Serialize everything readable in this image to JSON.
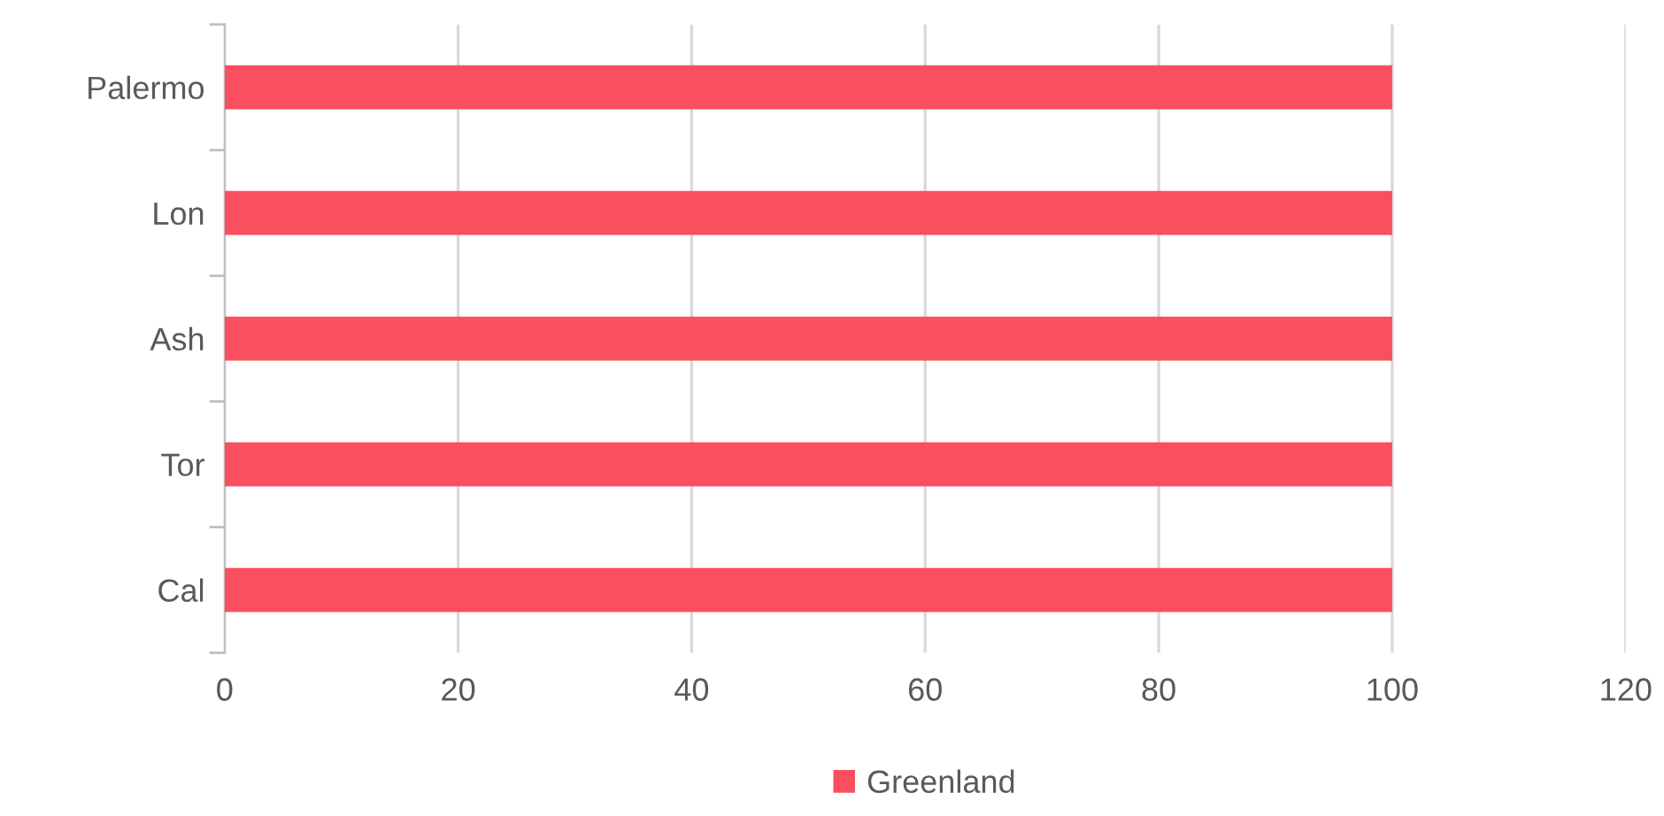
{
  "chart_data": {
    "type": "bar",
    "orientation": "horizontal",
    "categories": [
      "Palermo",
      "Lon",
      "Ash",
      "Tor",
      "Cal"
    ],
    "series": [
      {
        "name": "Greenland",
        "color": "#fa4f5e",
        "values": [
          100,
          100,
          100,
          100,
          100
        ]
      }
    ],
    "xlim": [
      0,
      120
    ],
    "xticks": [
      0,
      20,
      40,
      60,
      80,
      100,
      120
    ],
    "grid": "x",
    "legend": "bottom"
  }
}
